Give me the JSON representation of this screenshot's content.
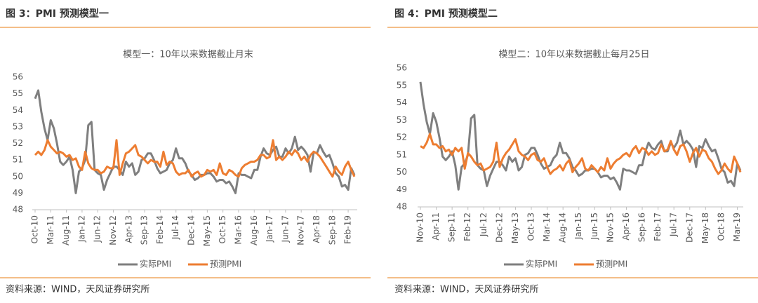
{
  "chart_data": [
    {
      "type": "line",
      "caption": "图 3：PMI 预测模型一",
      "title": "模型一：10年以来数据截止月末",
      "source": "资料来源：WIND，天风证券研究所",
      "categories": [
        "Oct-10",
        null,
        null,
        null,
        null,
        "Mar-11",
        null,
        null,
        null,
        null,
        "Aug-11",
        null,
        null,
        null,
        null,
        "Jan-12",
        null,
        null,
        null,
        null,
        "Jun-12",
        null,
        null,
        null,
        null,
        "Nov-12",
        null,
        null,
        null,
        null,
        "Apr-13",
        null,
        null,
        null,
        null,
        "Sep-13",
        null,
        null,
        null,
        null,
        "Feb-14",
        null,
        null,
        null,
        null,
        "Jul-14",
        null,
        null,
        null,
        null,
        "Dec-14",
        null,
        null,
        null,
        null,
        "May-15",
        null,
        null,
        null,
        null,
        "Oct-15",
        null,
        null,
        null,
        null,
        "Mar-16",
        null,
        null,
        null,
        null,
        "Aug-16",
        null,
        null,
        null,
        null,
        "Jan-17",
        null,
        null,
        null,
        null,
        "Jun-17",
        null,
        null,
        null,
        null,
        "Nov-17",
        null,
        null,
        null,
        null,
        "Apr-18",
        null,
        null,
        null,
        null,
        "Sep-18",
        null,
        null,
        null,
        null,
        "Feb-19",
        null,
        null
      ],
      "series": [
        {
          "name": "实际PMI",
          "color": "#7f7f7f",
          "values": [
            54.7,
            55.2,
            53.9,
            52.9,
            52.2,
            53.4,
            52.9,
            52.0,
            50.9,
            50.7,
            50.9,
            51.2,
            50.4,
            49.0,
            50.3,
            50.5,
            51.0,
            53.1,
            53.3,
            50.4,
            50.2,
            50.1,
            49.2,
            49.8,
            50.2,
            50.6,
            50.6,
            50.4,
            50.1,
            50.9,
            50.6,
            50.8,
            50.1,
            50.3,
            51.0,
            51.1,
            51.4,
            51.4,
            51.0,
            50.5,
            50.2,
            50.3,
            50.4,
            50.8,
            51.0,
            51.7,
            51.1,
            51.1,
            50.8,
            50.3,
            50.1,
            49.8,
            49.9,
            50.1,
            50.1,
            50.2,
            50.2,
            50.0,
            49.7,
            49.8,
            49.8,
            49.6,
            49.7,
            49.4,
            49.0,
            50.2,
            50.1,
            50.1,
            50.0,
            49.9,
            50.4,
            50.4,
            51.2,
            51.7,
            51.4,
            51.3,
            51.6,
            51.8,
            51.2,
            51.2,
            51.7,
            51.4,
            51.7,
            52.4,
            51.6,
            51.8,
            51.6,
            51.3,
            50.3,
            51.5,
            51.4,
            51.9,
            51.5,
            51.2,
            51.3,
            50.8,
            50.2,
            50.0,
            49.4,
            49.5,
            49.2,
            50.5,
            50.1
          ]
        },
        {
          "name": "预测PMI",
          "color": "#ed7d31",
          "values": [
            51.3,
            51.5,
            51.3,
            51.6,
            52.2,
            51.8,
            51.6,
            51.4,
            51.5,
            51.4,
            51.2,
            51.3,
            51.0,
            51.1,
            50.6,
            50.4,
            51.5,
            50.8,
            50.5,
            50.4,
            50.4,
            50.2,
            50.3,
            50.6,
            50.5,
            50.5,
            52.2,
            50.1,
            50.8,
            51.4,
            51.5,
            51.7,
            51.9,
            51.3,
            51.2,
            51.0,
            50.8,
            51.0,
            50.9,
            50.9,
            50.6,
            51.5,
            50.7,
            50.9,
            50.8,
            50.3,
            50.1,
            50.2,
            50.2,
            50.4,
            50.0,
            50.2,
            50.3,
            50.0,
            50.1,
            50.4,
            50.3,
            50.4,
            50.1,
            50.8,
            50.2,
            50.1,
            50.4,
            50.3,
            50.1,
            50.0,
            50.5,
            50.7,
            50.8,
            50.9,
            50.9,
            51.0,
            51.3,
            51.3,
            51.1,
            51.2,
            52.2,
            51.0,
            51.2,
            51.0,
            51.2,
            51.5,
            51.3,
            51.6,
            51.4,
            51.0,
            51.2,
            50.9,
            51.3,
            51.5,
            51.4,
            51.2,
            50.9,
            50.6,
            50.3,
            50.0,
            50.6,
            50.3,
            50.1,
            50.6,
            50.9,
            50.4,
            50.0
          ]
        }
      ],
      "ylim": [
        48,
        56
      ],
      "yticks": [
        48,
        49,
        50,
        51,
        52,
        53,
        54,
        55,
        56
      ],
      "grid": false,
      "legend": "bottom"
    },
    {
      "type": "line",
      "caption": "图 4：PMI 预测模型二",
      "title": "模型二：10年以来数据截止每月25日",
      "source": "资料来源：WIND，天风证券研究所",
      "categories": [
        "Nov-10",
        null,
        null,
        null,
        null,
        "Apr-11",
        null,
        null,
        null,
        null,
        "Sep-11",
        null,
        null,
        null,
        null,
        "Feb-12",
        null,
        null,
        null,
        null,
        "Jul-12",
        null,
        null,
        null,
        null,
        "Dec-12",
        null,
        null,
        null,
        null,
        "May-13",
        null,
        null,
        null,
        null,
        "Oct-13",
        null,
        null,
        null,
        null,
        "Mar-14",
        null,
        null,
        null,
        null,
        "Aug-14",
        null,
        null,
        null,
        null,
        "Jan-15",
        null,
        null,
        null,
        null,
        "Jun-15",
        null,
        null,
        null,
        null,
        "Nov-15",
        null,
        null,
        null,
        null,
        "Apr-16",
        null,
        null,
        null,
        null,
        "Sep-16",
        null,
        null,
        null,
        null,
        "Feb-17",
        null,
        null,
        null,
        null,
        "Jul-17",
        null,
        null,
        null,
        null,
        "Dec-17",
        null,
        null,
        null,
        null,
        "May-18",
        null,
        null,
        null,
        null,
        "Oct-18",
        null,
        null,
        null,
        null,
        "Mar-19",
        null
      ],
      "series": [
        {
          "name": "实际PMI",
          "color": "#7f7f7f",
          "values": [
            55.2,
            53.9,
            52.9,
            52.2,
            53.4,
            52.9,
            52.0,
            50.9,
            50.7,
            50.9,
            51.2,
            50.4,
            49.0,
            50.3,
            50.5,
            51.0,
            53.1,
            53.3,
            50.4,
            50.2,
            50.1,
            49.2,
            49.8,
            50.2,
            50.6,
            50.6,
            50.4,
            50.1,
            50.9,
            50.6,
            50.8,
            50.1,
            50.3,
            51.0,
            51.1,
            51.4,
            51.4,
            51.0,
            50.5,
            50.2,
            50.3,
            50.4,
            50.8,
            51.0,
            51.7,
            51.1,
            51.1,
            50.8,
            50.3,
            50.1,
            49.8,
            49.9,
            50.1,
            50.1,
            50.2,
            50.2,
            50.0,
            49.7,
            49.8,
            49.8,
            49.6,
            49.7,
            49.4,
            49.0,
            50.2,
            50.1,
            50.1,
            50.0,
            49.9,
            50.4,
            50.4,
            51.2,
            51.7,
            51.4,
            51.3,
            51.6,
            51.8,
            51.2,
            51.2,
            51.7,
            51.4,
            51.7,
            52.4,
            51.6,
            51.8,
            51.6,
            51.3,
            50.3,
            51.5,
            51.4,
            51.9,
            51.5,
            51.2,
            51.3,
            50.8,
            50.2,
            50.0,
            49.4,
            49.5,
            49.2,
            50.5,
            50.1
          ]
        },
        {
          "name": "预测PMI",
          "color": "#ed7d31",
          "values": [
            51.5,
            51.4,
            51.7,
            52.2,
            51.6,
            51.6,
            51.4,
            51.5,
            51.2,
            51.3,
            51.0,
            51.4,
            51.2,
            51.4,
            50.2,
            51.1,
            50.9,
            50.6,
            50.4,
            50.5,
            50.1,
            50.2,
            50.3,
            50.6,
            51.7,
            50.3,
            50.8,
            51.1,
            51.3,
            51.6,
            51.9,
            51.2,
            51.0,
            50.9,
            50.7,
            51.0,
            51.1,
            50.7,
            50.6,
            50.8,
            50.3,
            49.9,
            50.1,
            50.2,
            50.4,
            50.1,
            50.5,
            50.7,
            50.0,
            50.3,
            50.5,
            50.8,
            50.2,
            50.1,
            50.4,
            50.2,
            50.0,
            50.3,
            50.1,
            50.8,
            50.2,
            50.5,
            50.7,
            50.8,
            51.0,
            51.1,
            50.9,
            51.3,
            51.5,
            51.1,
            51.4,
            51.3,
            51.0,
            51.2,
            51.0,
            51.1,
            51.6,
            51.2,
            51.3,
            51.8,
            51.3,
            51.0,
            51.5,
            51.6,
            51.2,
            50.6,
            51.1,
            51.4,
            50.9,
            51.3,
            51.2,
            50.8,
            50.6,
            50.2,
            49.9,
            50.1,
            50.5,
            50.2,
            50.0,
            50.9,
            50.5,
            50.0
          ]
        }
      ],
      "ylim": [
        48,
        56
      ],
      "yticks": [
        48,
        49,
        50,
        51,
        52,
        53,
        54,
        55,
        56
      ],
      "grid": false,
      "legend": "bottom"
    }
  ]
}
